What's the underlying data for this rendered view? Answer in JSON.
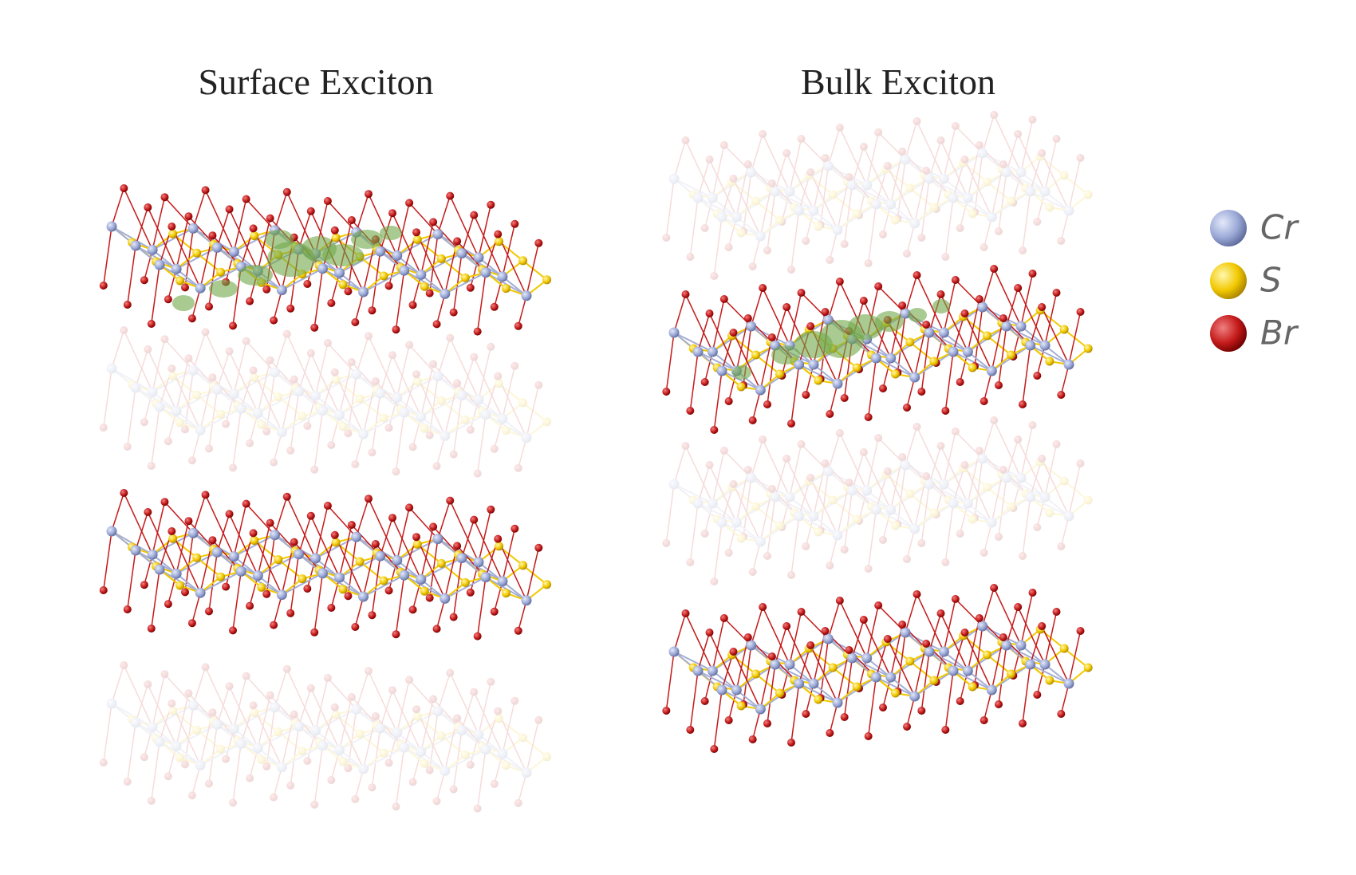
{
  "panels": [
    {
      "title": "Surface Exciton"
    },
    {
      "title": "Bulk Exciton"
    }
  ],
  "legend": [
    {
      "label": "Cr"
    },
    {
      "label": "S"
    },
    {
      "label": "Br"
    }
  ]
}
